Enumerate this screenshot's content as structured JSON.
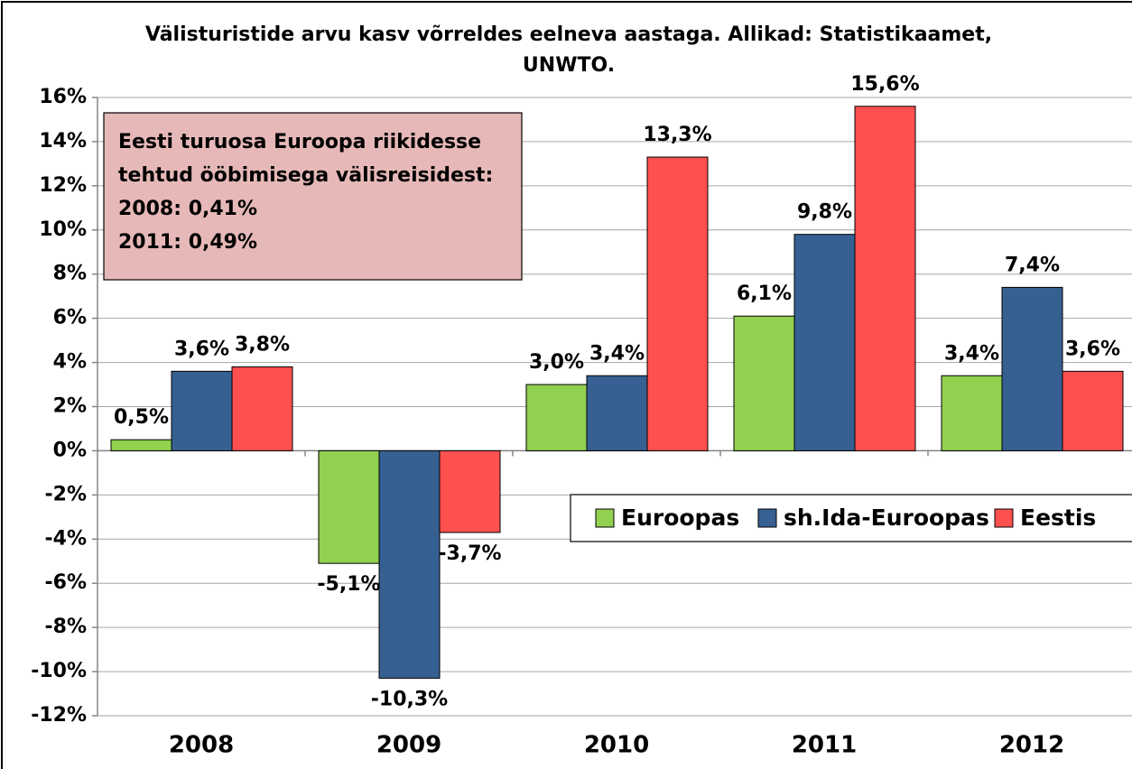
{
  "chart_data": {
    "type": "bar",
    "title": "Välisturistide arvu kasv võrreldes eelneva aastaga. Allikad: Statistikaamet, UNWTO.",
    "categories": [
      "2008",
      "2009",
      "2010",
      "2011",
      "2012"
    ],
    "series": [
      {
        "name": "Euroopas",
        "color": "#92d050",
        "values": [
          0.5,
          -5.1,
          3.0,
          6.1,
          3.4
        ],
        "value_labels": [
          "0,5%",
          "-5,1%",
          "3,0%",
          "6,1%",
          "3,4%"
        ]
      },
      {
        "name": "sh.Ida-Euroopas",
        "color": "#376092",
        "values": [
          3.6,
          -10.3,
          3.4,
          9.8,
          7.4
        ],
        "value_labels": [
          "3,6%",
          "-10,3%",
          "3,4%",
          "9,8%",
          "7,4%"
        ]
      },
      {
        "name": "Eestis",
        "color": "#ff5050",
        "values": [
          3.8,
          -3.7,
          13.3,
          15.6,
          3.6
        ],
        "value_labels": [
          "3,8%",
          "-3,7%",
          "13,3%",
          "15,6%",
          "3,6%"
        ]
      }
    ],
    "ylim": [
      -12,
      16
    ],
    "yticks": [
      {
        "value": -12,
        "label": "-12%"
      },
      {
        "value": -10,
        "label": "-10%"
      },
      {
        "value": -8,
        "label": "-8%"
      },
      {
        "value": -6,
        "label": "-6%"
      },
      {
        "value": -4,
        "label": "-4%"
      },
      {
        "value": -2,
        "label": "-2%"
      },
      {
        "value": 0,
        "label": "0%"
      },
      {
        "value": 2,
        "label": "2%"
      },
      {
        "value": 4,
        "label": "4%"
      },
      {
        "value": 6,
        "label": "6%"
      },
      {
        "value": 8,
        "label": "8%"
      },
      {
        "value": 10,
        "label": "10%"
      },
      {
        "value": 12,
        "label": "12%"
      },
      {
        "value": 14,
        "label": "14%"
      },
      {
        "value": 16,
        "label": "16%"
      }
    ],
    "grid": true,
    "legend_position": "right",
    "annotation": [
      "Eesti turuosa Euroopa riikidesse",
      "tehtud ööbimisega välisreisidest:",
      "2008:  0,41%",
      "2011:  0,49%"
    ]
  }
}
